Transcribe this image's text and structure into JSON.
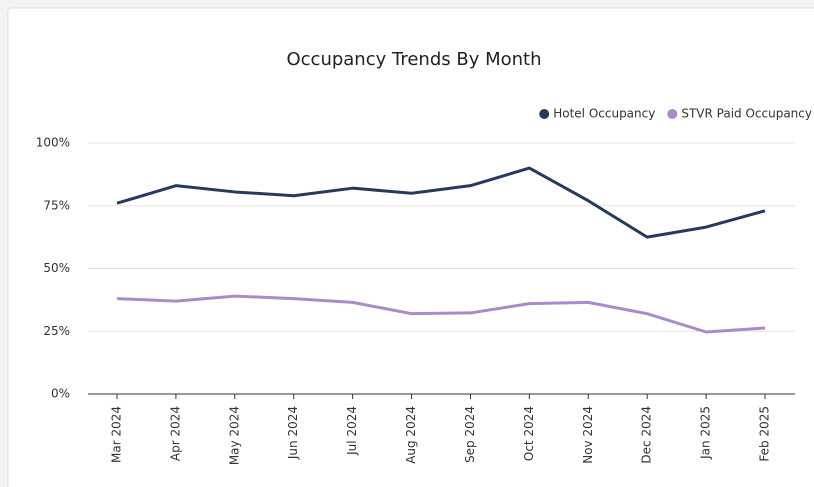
{
  "chart_data": {
    "type": "line",
    "title": "Occupancy Trends By Month",
    "categories": [
      "Mar 2024",
      "Apr 2024",
      "May 2024",
      "Jun 2024",
      "Jul 2024",
      "Aug 2024",
      "Sep 2024",
      "Oct 2024",
      "Nov 2024",
      "Dec 2024",
      "Jan 2025",
      "Feb 2025"
    ],
    "series": [
      {
        "name": "Hotel Occupancy",
        "color": "#253a5e",
        "values": [
          76,
          83,
          80.5,
          79,
          82,
          80,
          83,
          90,
          77,
          62.5,
          66.5,
          73
        ]
      },
      {
        "name": "STVR Paid Occupancy",
        "color": "#a98bc9",
        "values": [
          38,
          37,
          39,
          38,
          36.5,
          32,
          32.3,
          36,
          36.5,
          32,
          24.7,
          26.3
        ]
      }
    ],
    "ylim": [
      0,
      100
    ],
    "yticks": [
      {
        "value": 0,
        "label": "0%"
      },
      {
        "value": 25,
        "label": "25%"
      },
      {
        "value": 50,
        "label": "50%"
      },
      {
        "value": 75,
        "label": "75%"
      },
      {
        "value": 100,
        "label": "100%"
      }
    ],
    "grid": true,
    "legend": "top-right"
  }
}
